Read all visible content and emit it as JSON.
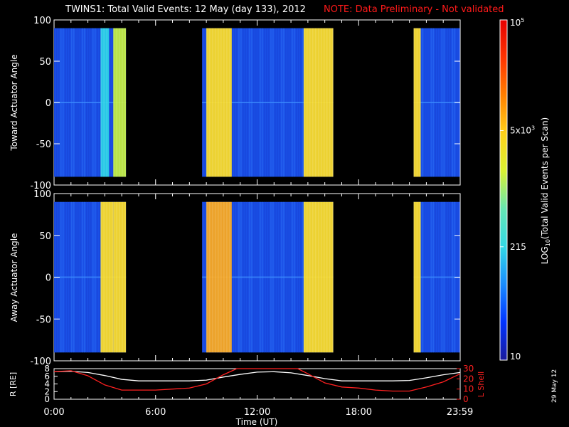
{
  "title": {
    "main": "TWINS1: Total Valid Events: 12 May (day 133), 2012",
    "note": "NOTE: Data Preliminary - Not validated",
    "note_color": "#ff1a1a"
  },
  "date_stamp": "29 May 12",
  "colorbar": {
    "label": "LOG10(Total Valid Events per Scan)",
    "label_main": "LOG",
    "label_sub": "10",
    "label_rest": "(Total Valid Events per Scan)",
    "tick_labels": [
      "10",
      "215",
      "5x10^3",
      "10^5"
    ],
    "tick_values": [
      10,
      215,
      5000,
      100000
    ],
    "colormap": [
      "#1a1a9c",
      "#0033ff",
      "#1a8cff",
      "#33d9e6",
      "#66e6b3",
      "#d9f233",
      "#ffd11a",
      "#ff8000",
      "#ff3300",
      "#e60000"
    ]
  },
  "chart_data": [
    {
      "type": "heatmap",
      "title": "",
      "ylabel": "Toward Actuator Angle",
      "xlabel": "",
      "ylim": [
        -100,
        100
      ],
      "yticks": [
        "100",
        "50",
        "0",
        "-50",
        "-100"
      ],
      "xlim_hours": [
        0,
        24
      ],
      "data_ylim": [
        -90,
        90
      ],
      "dominant_value_level": "~100-300 events (blue)",
      "coverage_intervals_ut": [
        [
          "0:00",
          "4:15"
        ],
        [
          "8:45",
          "16:30"
        ],
        [
          "21:15",
          "23:59"
        ]
      ],
      "bright_bands_ut": [
        {
          "start": "2:45",
          "end": "3:15",
          "level": "cyan"
        },
        {
          "start": "3:30",
          "end": "4:15",
          "level": "yellow-green"
        },
        {
          "start": "9:00",
          "end": "10:30",
          "level": "yellow"
        },
        {
          "start": "14:45",
          "end": "16:30",
          "level": "yellow"
        },
        {
          "start": "21:15",
          "end": "21:40",
          "level": "yellow"
        }
      ]
    },
    {
      "type": "heatmap",
      "title": "",
      "ylabel": "Away Actuator Angle",
      "xlabel": "",
      "ylim": [
        -100,
        100
      ],
      "yticks": [
        "100",
        "50",
        "0",
        "-50",
        "-100"
      ],
      "xlim_hours": [
        0,
        24
      ],
      "data_ylim": [
        -90,
        90
      ],
      "dominant_value_level": "~100-300 events (blue)",
      "coverage_intervals_ut": [
        [
          "0:00",
          "4:15"
        ],
        [
          "8:45",
          "16:30"
        ],
        [
          "21:15",
          "23:59"
        ]
      ],
      "bright_bands_ut": [
        {
          "start": "2:45",
          "end": "3:30",
          "level": "yellow"
        },
        {
          "start": "3:30",
          "end": "4:15",
          "level": "yellow"
        },
        {
          "start": "9:00",
          "end": "10:30",
          "level": "orange"
        },
        {
          "start": "14:45",
          "end": "16:30",
          "level": "yellow"
        },
        {
          "start": "21:15",
          "end": "21:40",
          "level": "yellow"
        }
      ]
    },
    {
      "type": "line",
      "title": "",
      "xlabel": "Time (UT)",
      "ylabel": "R [RE]",
      "y2label": "L Shell",
      "xticks": [
        "0:00",
        "6:00",
        "12:00",
        "18:00",
        "23:59"
      ],
      "xtick_hours": [
        0,
        6,
        12,
        18,
        23.983
      ],
      "ylim": [
        0,
        8
      ],
      "yticks": [
        "8",
        "6",
        "4",
        "2",
        "0"
      ],
      "y2lim": [
        0,
        30
      ],
      "y2ticks": [
        "30",
        "20",
        "10",
        "0"
      ],
      "y2_color": "#ff2020",
      "series": [
        {
          "name": "R [RE]",
          "axis": "left",
          "color": "#ffffff",
          "x": [
            0,
            1,
            2,
            3,
            4,
            5,
            6,
            7,
            8,
            9,
            10,
            11,
            12,
            13,
            14,
            15,
            16,
            17,
            18,
            19,
            20,
            21,
            22,
            23,
            24
          ],
          "y": [
            7.2,
            7.3,
            7.0,
            6.2,
            5.2,
            4.8,
            4.8,
            4.8,
            4.8,
            5.0,
            5.8,
            6.5,
            7.1,
            7.2,
            6.9,
            6.2,
            5.4,
            4.8,
            4.8,
            4.8,
            4.8,
            4.9,
            5.6,
            6.4,
            7.0
          ]
        },
        {
          "name": "L Shell",
          "axis": "right",
          "color": "#ff2020",
          "x": [
            0,
            1,
            2,
            3,
            4,
            5,
            6,
            7,
            8,
            9,
            10,
            10.8,
            14.4,
            15,
            16,
            17,
            18,
            19,
            20,
            21,
            22,
            23,
            24
          ],
          "y": [
            27,
            28,
            23,
            14,
            9,
            9,
            9,
            10,
            11,
            15,
            24,
            31,
            31,
            25,
            16,
            12,
            11,
            9,
            8,
            8,
            12,
            17,
            25
          ]
        }
      ]
    }
  ]
}
